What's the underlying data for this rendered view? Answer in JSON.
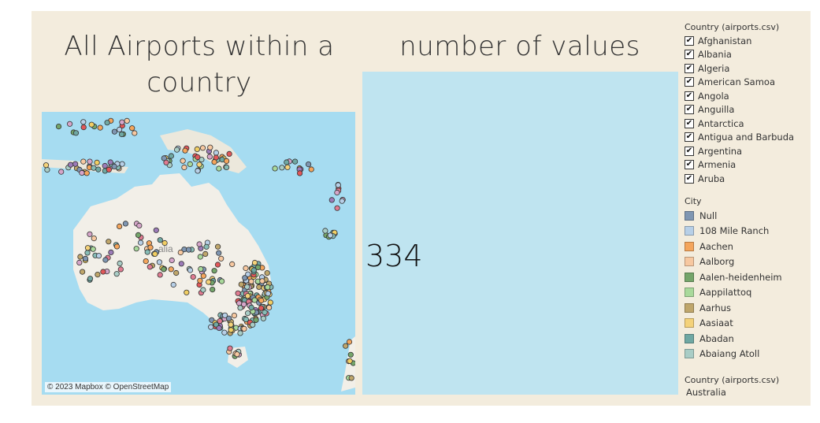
{
  "dashboard": {
    "title_left_line1": "All Airports within  a",
    "title_left_line2": "country",
    "title_right": "number of values"
  },
  "map": {
    "credit": "© 2023 Mapbox © OpenStreetMap",
    "label_partial": "alia"
  },
  "values": {
    "count": "334"
  },
  "filter": {
    "title": "Country (airports.csv)",
    "items": [
      {
        "label": "Afghanistan",
        "checked": true
      },
      {
        "label": "Albania",
        "checked": true
      },
      {
        "label": "Algeria",
        "checked": true
      },
      {
        "label": "American Samoa",
        "checked": true
      },
      {
        "label": "Angola",
        "checked": true
      },
      {
        "label": "Anguilla",
        "checked": true
      },
      {
        "label": "Antarctica",
        "checked": true
      },
      {
        "label": "Antigua and Barbuda",
        "checked": true
      },
      {
        "label": "Argentina",
        "checked": true
      },
      {
        "label": "Armenia",
        "checked": true
      },
      {
        "label": "Aruba",
        "checked": true
      }
    ]
  },
  "legend": {
    "title": "City",
    "items": [
      {
        "label": "Null",
        "color": "#7f96b2"
      },
      {
        "label": "108 Mile Ranch",
        "color": "#b7cfe7"
      },
      {
        "label": "Aachen",
        "color": "#f4a55c"
      },
      {
        "label": "Aalborg",
        "color": "#f7c8a0"
      },
      {
        "label": "Aalen-heidenheim",
        "color": "#74a56a"
      },
      {
        "label": "Aappilattoq",
        "color": "#a9d99b"
      },
      {
        "label": "Aarhus",
        "color": "#bfa66b"
      },
      {
        "label": "Aasiaat",
        "color": "#f4d27a"
      },
      {
        "label": "Abadan",
        "color": "#6fa8a3"
      },
      {
        "label": "Abaiang Atoll",
        "color": "#a9cdc6"
      }
    ]
  },
  "selection": {
    "title": "Country (airports.csv)",
    "value": "Australia"
  }
}
